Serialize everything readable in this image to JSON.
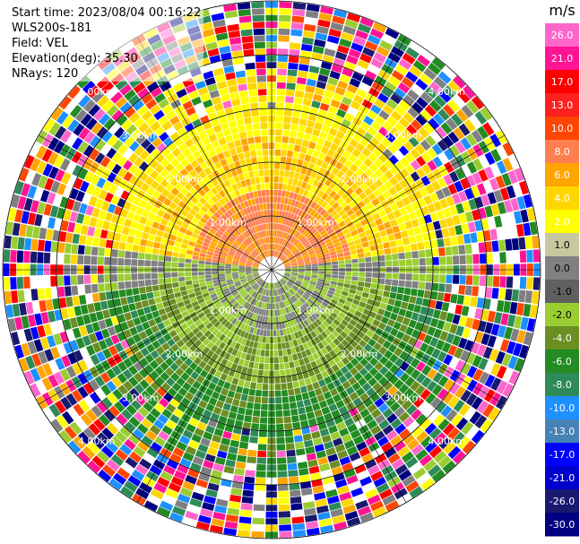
{
  "header": {
    "start_time": "Start time: 2023/08/04 00:16:22",
    "site": "WLS200s-181",
    "field": "Field: VEL",
    "elevation": "Elevation(deg): 35.30",
    "nrays": "NRays: 120"
  },
  "chart_data": {
    "type": "heatmap",
    "subtype": "radar-ppi",
    "unit": "m/s",
    "n_rays": 120,
    "range_ring_labels": [
      "1.00km",
      "2.00km",
      "3.00km",
      "4.00km"
    ],
    "colorbar": {
      "ticks": [
        "26.0",
        "21.0",
        "17.0",
        "13.0",
        "10.0",
        "8.0",
        "6.0",
        "4.0",
        "2.0",
        "1.0",
        "0.0",
        "-1.0",
        "-2.0",
        "-4.0",
        "-6.0",
        "-8.0",
        "-10.0",
        "-13.0",
        "-17.0",
        "-21.0",
        "-26.0",
        "-30.0"
      ],
      "colors": [
        "#ff66cc",
        "#ff1493",
        "#ff0000",
        "#ff2020",
        "#ff4500",
        "#ff7f50",
        "#ffa500",
        "#ffd700",
        "#ffff00",
        "#c8c8a0",
        "#808080",
        "#606060",
        "#9acd32",
        "#6b8e23",
        "#228b22",
        "#2e8b57",
        "#1e90ff",
        "#4682b4",
        "#0000ff",
        "#0000cd",
        "#191970",
        "#000080"
      ]
    },
    "legend_position": "right",
    "grid": true
  }
}
